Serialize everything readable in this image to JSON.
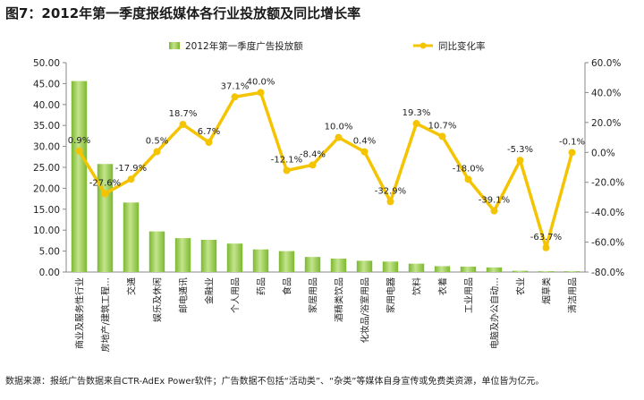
{
  "title": "图7：2012年第一季度报纸媒体各行业投放额及同比增长率",
  "source": "数据来源：报纸广告数据来自CTR-AdEx Power软件；广告数据不包括“活动类”、“杂类”等媒体自身宣传或免费类资源，单位皆为亿元。",
  "colors": {
    "bar": "#7cb82f",
    "bar_light": "#c4e48d",
    "line": "#f5c400"
  },
  "chart_data": {
    "type": "bar",
    "categories": [
      "商业及服务性行业",
      "房地产/建筑工程…",
      "交通",
      "娱乐及休闲",
      "邮电通讯",
      "金融业",
      "个人用品",
      "药品",
      "食品",
      "家居用品",
      "酒精类饮品",
      "化妆品/浴室用品",
      "家用电器",
      "饮料",
      "衣着",
      "工业用品",
      "电脑及办公自动…",
      "农业",
      "烟草类",
      "清洁用品"
    ],
    "series": [
      {
        "name": "2012年第一季度广告投放额",
        "type": "bar",
        "axis": "left",
        "values": [
          45.6,
          25.8,
          16.6,
          9.7,
          8.1,
          7.7,
          6.8,
          5.4,
          5.0,
          3.6,
          3.2,
          2.7,
          2.5,
          2.0,
          1.4,
          1.3,
          1.1,
          0.3,
          0.2,
          0.2
        ]
      },
      {
        "name": "同比变化率",
        "type": "line",
        "axis": "right",
        "values": [
          0.9,
          -27.6,
          -17.9,
          0.5,
          18.7,
          6.7,
          37.1,
          40.0,
          -12.1,
          -8.4,
          10.0,
          0.4,
          -32.9,
          19.3,
          10.7,
          -18.0,
          -39.1,
          -5.3,
          -63.7,
          -0.1
        ],
        "labels": [
          "0.9%",
          "-27.6%",
          "-17.9%",
          "0.5%",
          "18.7%",
          "6.7%",
          "37.1%",
          "40.0%",
          "-12.1%",
          "-8.4%",
          "10.0%",
          "0.4%",
          "-32.9%",
          "19.3%",
          "10.7%",
          "-18.0%",
          "-39.1%",
          "-5.3%",
          "-63.7%",
          "-0.1%"
        ]
      }
    ],
    "left_axis": {
      "ylim": [
        0,
        50
      ],
      "ticks": [
        "0.00",
        "5.00",
        "10.00",
        "15.00",
        "20.00",
        "25.00",
        "30.00",
        "35.00",
        "40.00",
        "45.00",
        "50.00"
      ]
    },
    "right_axis": {
      "ylim": [
        -80,
        60
      ],
      "ticks": [
        "-80.0%",
        "-60.0%",
        "-40.0%",
        "-20.0%",
        "0.0%",
        "20.0%",
        "40.0%",
        "60.0%"
      ]
    },
    "legend": "top"
  }
}
